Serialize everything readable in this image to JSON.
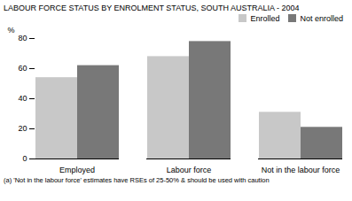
{
  "chart_data": {
    "type": "bar",
    "title": "LABOUR FORCE STATUS BY ENROLMENT STATUS, SOUTH AUSTRALIA - 2004",
    "categories": [
      "Employed",
      "Labour force",
      "Not in the labour force"
    ],
    "series": [
      {
        "name": "Enrolled",
        "color": "#c8c8c8",
        "values": [
          54,
          68,
          31
        ]
      },
      {
        "name": "Not enrolled",
        "color": "#787878",
        "values": [
          62,
          78,
          21
        ]
      }
    ],
    "ylabel": "%",
    "ylim": [
      0,
      80
    ],
    "yticks": [
      0,
      20,
      40,
      60,
      80
    ],
    "grid": false,
    "legend": "upper right",
    "annotations": [
      "(a) 'Not in the labour force' estimates have RSEs of 25-50% & should be used with caution"
    ]
  }
}
